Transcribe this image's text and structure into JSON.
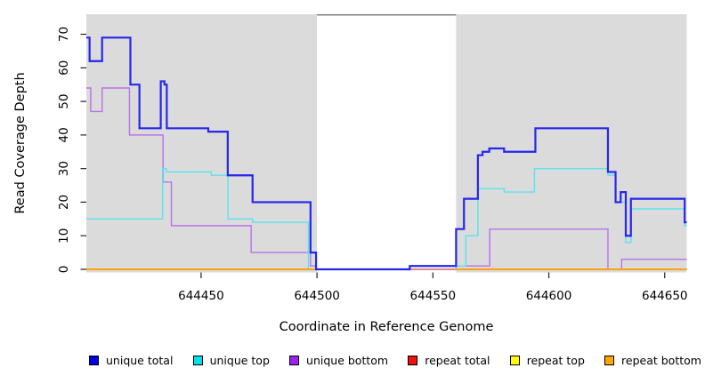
{
  "chart_data": {
    "type": "line",
    "line_style": "step-after",
    "title": "",
    "xlabel": "Coordinate in Reference Genome",
    "ylabel": "Read Coverage Depth",
    "xlim": [
      644400.5,
      644659.5
    ],
    "ylim": [
      0,
      76
    ],
    "x_ticks": [
      644450,
      644500,
      644550,
      644600,
      644650
    ],
    "y_ticks": [
      0,
      10,
      20,
      30,
      40,
      50,
      60,
      70
    ],
    "grid": false,
    "legend_position": "bottom",
    "panel_bg_color": "#DBDBDB",
    "background_panels": [
      {
        "x": [
          644400.5,
          644500
        ]
      },
      {
        "x": [
          644560,
          644659.5
        ]
      }
    ],
    "gap_region": {
      "x": [
        644500,
        644560
      ],
      "top_border_color": "#808080"
    },
    "series": [
      {
        "name": "unique total",
        "color": "#2626EC",
        "legend_color": "#0000E0",
        "width": 2.2,
        "z": 6,
        "segments": [
          {
            "xend": 644659.5,
            "points": [
              [
                644400.5,
                69
              ],
              [
                644401.9,
                62
              ],
              [
                644407.3,
                69
              ],
              [
                644419.5,
                55
              ],
              [
                644423.4,
                42
              ],
              [
                644432.6,
                56
              ],
              [
                644434.2,
                55
              ],
              [
                644435.2,
                42
              ],
              [
                644453.1,
                41
              ],
              [
                644461.5,
                28
              ],
              [
                644472.2,
                20
              ],
              [
                644497.2,
                5
              ],
              [
                644499.6,
                0
              ],
              [
                644540,
                1
              ],
              [
                644560,
                12
              ],
              [
                644563.4,
                21
              ],
              [
                644569.4,
                34
              ],
              [
                644571.4,
                35
              ],
              [
                644574.3,
                36
              ],
              [
                644580.7,
                35
              ],
              [
                644594.2,
                42
              ],
              [
                644625.5,
                29
              ],
              [
                644628.8,
                20
              ],
              [
                644631,
                23
              ],
              [
                644633.2,
                10
              ],
              [
                644635.4,
                21
              ],
              [
                644658.6,
                14
              ]
            ]
          }
        ]
      },
      {
        "name": "unique top",
        "color": "#58E4EE",
        "legend_color": "#00E0E8",
        "width": 1.4,
        "z": 3,
        "segments": [
          {
            "xend": 644659.5,
            "points": [
              [
                644400.5,
                15
              ],
              [
                644433.4,
                30
              ],
              [
                644435,
                29
              ],
              [
                644454.4,
                28
              ],
              [
                644461.6,
                15
              ],
              [
                644472.2,
                14
              ],
              [
                644496.3,
                0
              ],
              [
                644560,
                1
              ],
              [
                644564.2,
                10
              ],
              [
                644569.4,
                24
              ],
              [
                644580.7,
                23
              ],
              [
                644593.8,
                30
              ],
              [
                644625.5,
                28
              ],
              [
                644628.8,
                20
              ],
              [
                644633.2,
                8
              ],
              [
                644635.4,
                18
              ],
              [
                644658.6,
                13
              ]
            ]
          }
        ]
      },
      {
        "name": "unique bottom",
        "color": "#B873E9",
        "legend_color": "#A020F0",
        "width": 1.4,
        "z": 2,
        "segments": [
          {
            "xend": 644659.5,
            "points": [
              [
                644400.5,
                54
              ],
              [
                644402.4,
                47
              ],
              [
                644407.3,
                54
              ],
              [
                644419.1,
                40
              ],
              [
                644433.6,
                26
              ],
              [
                644437.2,
                13
              ],
              [
                644471.6,
                5
              ],
              [
                644497.2,
                1
              ],
              [
                644499.6,
                0
              ],
              [
                644540,
                1
              ],
              [
                644574.5,
                12
              ],
              [
                644625.5,
                0
              ],
              [
                644631.4,
                3
              ]
            ]
          }
        ]
      },
      {
        "name": "repeat total",
        "color": "#E66A86",
        "legend_color": "#EE1111",
        "width": 1.6,
        "z": 4,
        "segments": [
          {
            "xend": 644659.5,
            "points": [
              [
                644400.5,
                0
              ]
            ]
          }
        ]
      },
      {
        "name": "repeat top",
        "color": "#FFFF00",
        "legend_color": "#FFFF00",
        "width": 1.4,
        "z": 1,
        "segments": [
          {
            "xend": 644659.5,
            "points": [
              [
                644400.5,
                0
              ]
            ]
          }
        ]
      },
      {
        "name": "repeat bottom",
        "color": "#FFA00E",
        "legend_color": "#FFA500",
        "width": 2,
        "z": 5,
        "segments": [
          {
            "xend": 644500,
            "points": [
              [
                644400.5,
                0
              ]
            ]
          },
          {
            "xend": 644659.5,
            "points": [
              [
                644560,
                0
              ]
            ]
          }
        ]
      }
    ]
  }
}
